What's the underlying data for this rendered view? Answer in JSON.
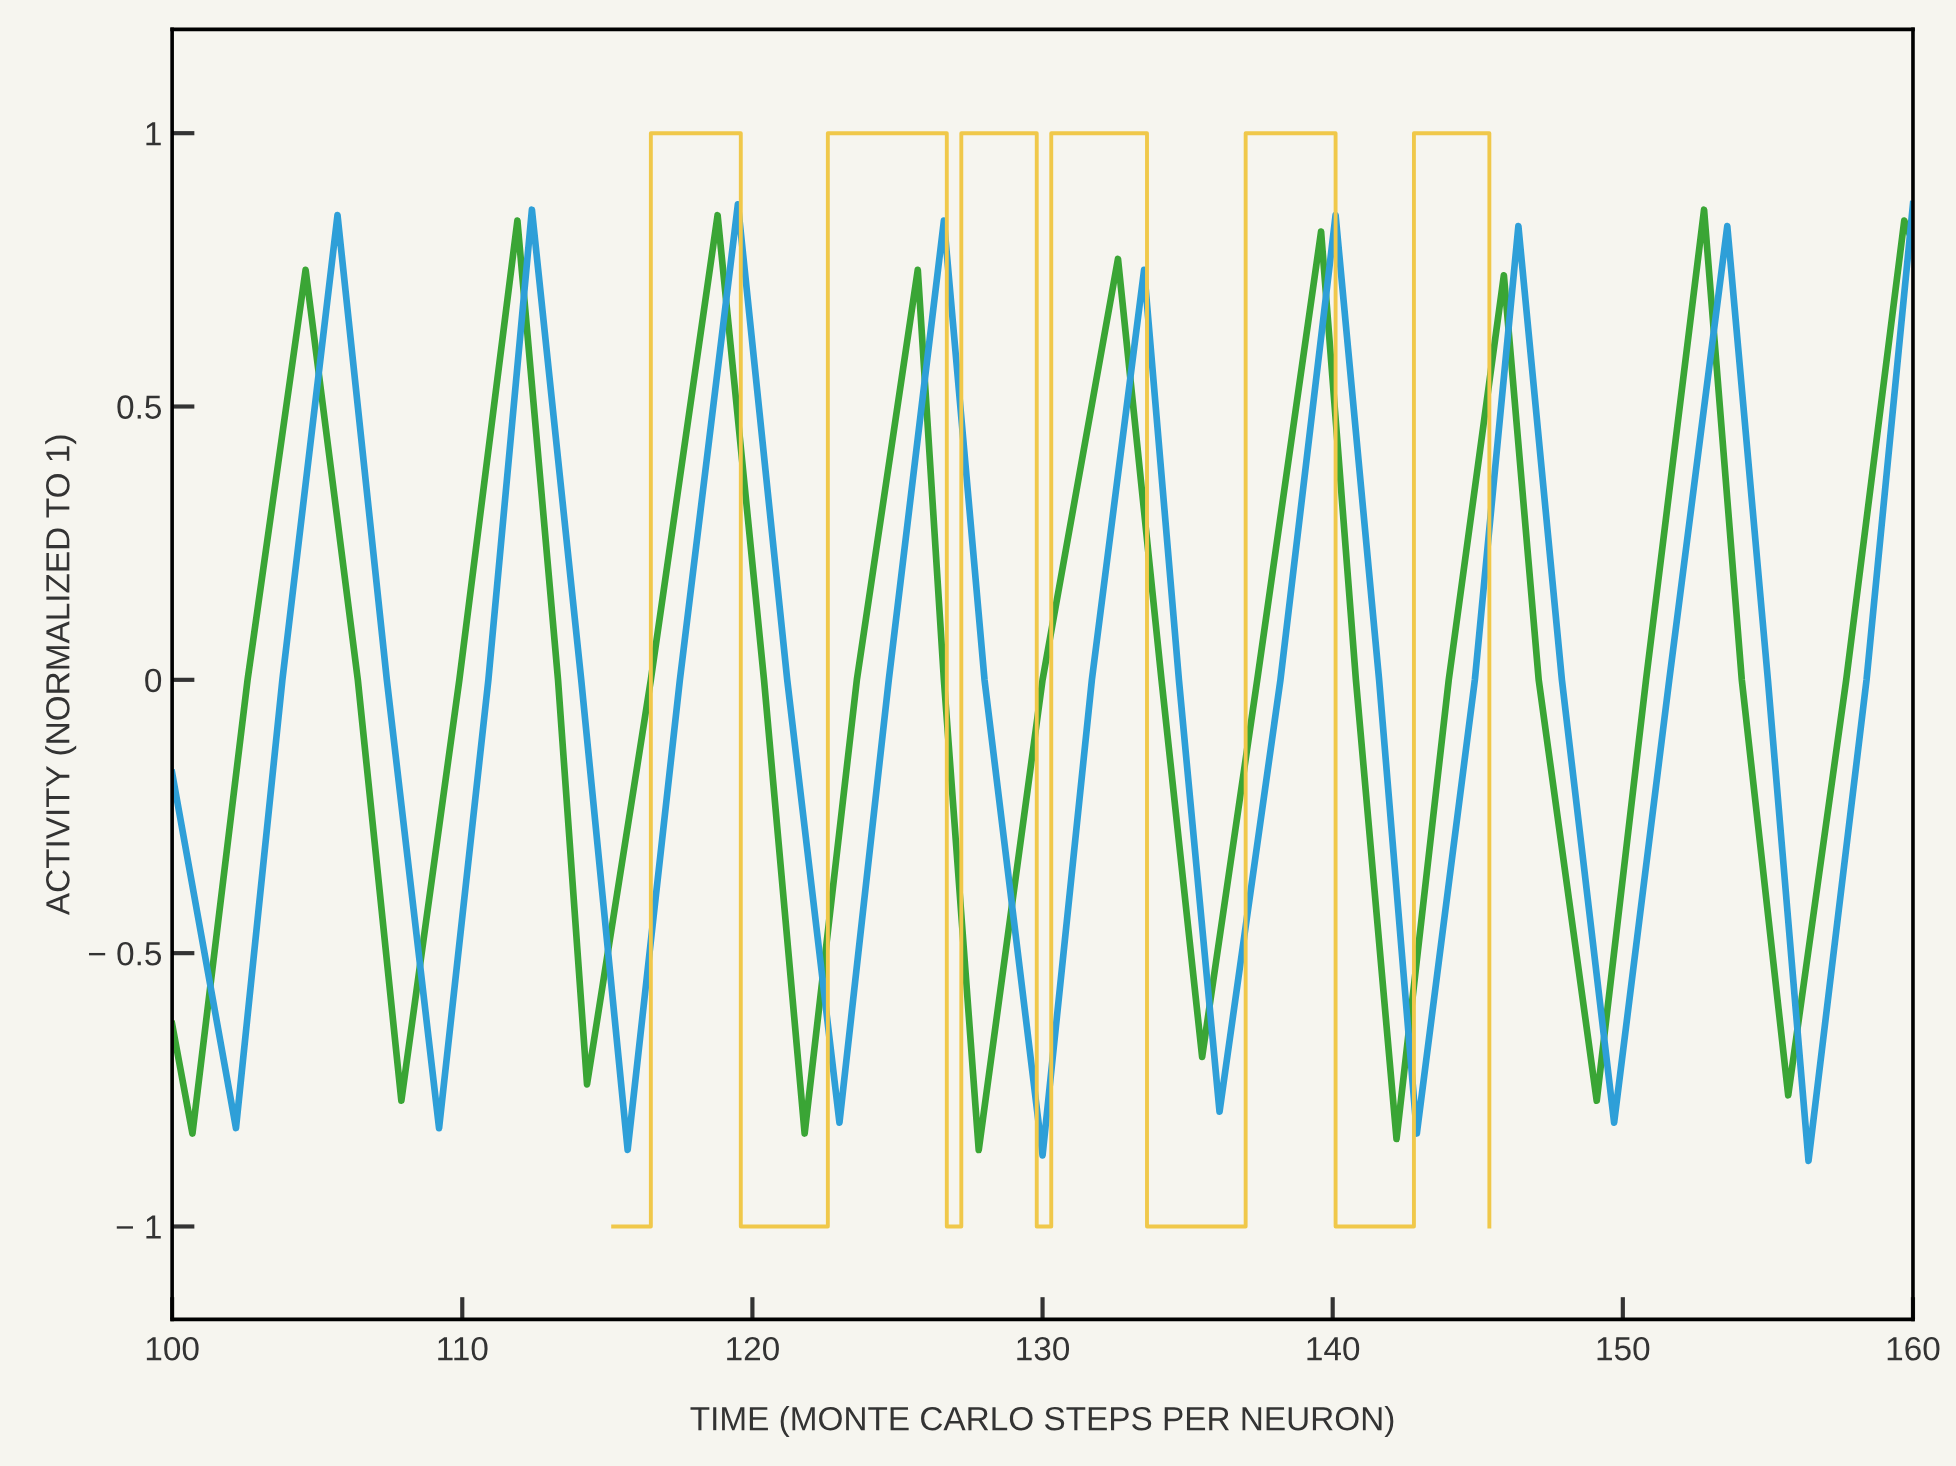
{
  "chart_data": {
    "type": "line",
    "xlabel": "TIME (MONTE CARLO STEPS PER NEURON)",
    "ylabel": "ACTIVITY (NORMALIZED TO 1)",
    "xlim": [
      100,
      160
    ],
    "ylim": [
      -1.17,
      1.19
    ],
    "xticks": [
      100,
      110,
      120,
      130,
      140,
      150,
      160
    ],
    "yticks": [
      {
        "value": -1,
        "label": "− 1"
      },
      {
        "value": -0.5,
        "label": "− 0.5"
      },
      0,
      0.5,
      1
    ],
    "grid": false,
    "legend": false,
    "marker": "none",
    "line_style": "solid",
    "series": [
      {
        "color": "#3aa535",
        "x": [
          100,
          100.7,
          102.6,
          104.6,
          106.4,
          107.9,
          109.9,
          111.9,
          113.3,
          114.3,
          116.5,
          118.8,
          120.4,
          121.8,
          123.6,
          125.7,
          126.6,
          127.8,
          130.0,
          132.6,
          134.1,
          135.5,
          137.4,
          139.6,
          140.8,
          142.2,
          144.0,
          145.9,
          147.1,
          149.1,
          150.8,
          152.8,
          154.1,
          155.7,
          157.7,
          159.7,
          160
        ],
        "values": [
          -0.63,
          -0.83,
          0,
          0.75,
          0,
          -0.77,
          0,
          0.84,
          0,
          -0.74,
          0,
          0.85,
          0,
          -0.83,
          0,
          0.75,
          0,
          -0.86,
          0,
          0.77,
          0,
          -0.69,
          0,
          0.82,
          0,
          -0.84,
          0,
          0.74,
          0,
          -0.77,
          0,
          0.86,
          0,
          -0.76,
          0,
          0.84,
          0.8
        ]
      },
      {
        "color": "#2e9fd8",
        "x": [
          100,
          102.2,
          103.8,
          105.7,
          107.4,
          109.2,
          110.9,
          112.4,
          114.1,
          115.7,
          117.5,
          119.5,
          121.2,
          123.0,
          124.7,
          126.6,
          128.0,
          130.0,
          131.7,
          133.5,
          134.7,
          136.1,
          138.2,
          140.1,
          141.6,
          142.9,
          144.9,
          146.4,
          147.9,
          149.7,
          151.6,
          153.6,
          155.0,
          156.4,
          158.4,
          160
        ],
        "values": [
          -0.17,
          -0.82,
          0,
          0.85,
          0,
          -0.82,
          0,
          0.86,
          0,
          -0.86,
          0,
          0.87,
          0,
          -0.81,
          0,
          0.84,
          0,
          -0.87,
          0,
          0.75,
          0,
          -0.79,
          0,
          0.85,
          0,
          -0.83,
          0,
          0.83,
          0,
          -0.81,
          0,
          0.83,
          0,
          -0.88,
          0,
          0.87
        ]
      },
      {
        "type": "step",
        "color": "#f0c84a",
        "x": [
          115.2,
          116.5,
          119.6,
          122.6,
          126.7,
          127.2,
          129.8,
          130.3,
          133.6,
          137.0,
          140.1,
          142.8,
          145.4
        ],
        "values": [
          -1,
          1,
          -1,
          1,
          -1,
          1,
          -1,
          1,
          -1,
          1,
          -1,
          1,
          -1
        ]
      }
    ]
  }
}
